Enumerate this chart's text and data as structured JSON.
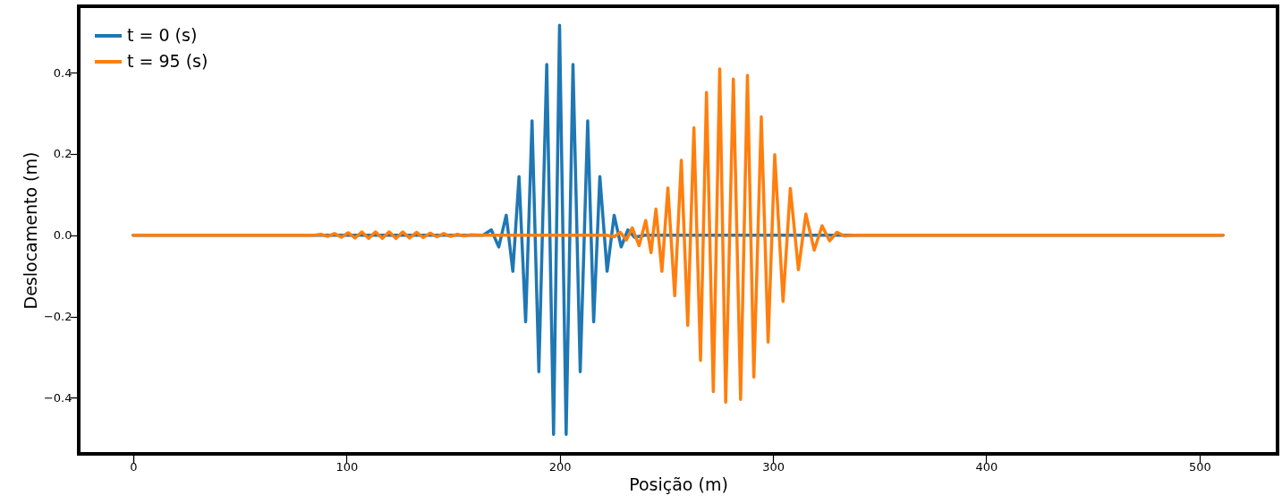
{
  "chart_data": {
    "type": "line",
    "xlabel": "Posição (m)",
    "ylabel": "Deslocamento (m)",
    "xlim": [
      -25.55,
      536.55
    ],
    "ylim": [
      -0.538,
      0.563
    ],
    "xticks": [
      0,
      100,
      200,
      300,
      400,
      500
    ],
    "yticks": [
      {
        "value": -0.4,
        "label": "−0.4"
      },
      {
        "value": -0.2,
        "label": "−0.2"
      },
      {
        "value": 0,
        "label": "0.0"
      },
      0.2,
      0.4
    ],
    "grid": false,
    "legend": "top left",
    "line_style": "solid",
    "marker": "none",
    "series": [
      {
        "name": "t = 0 (s)",
        "color": "#1f77b4",
        "x": [
          0,
          164,
          167.9,
          171.4,
          174.9,
          178,
          180.9,
          184,
          187,
          190.2,
          193.9,
          197.1,
          199.9,
          203,
          206.2,
          209.6,
          213.1,
          215.9,
          218.8,
          222.2,
          225.5,
          228.8,
          231.9,
          235,
          240,
          511
        ],
        "values": [
          0,
          0,
          0.013,
          -0.029,
          0.049,
          -0.089,
          0.144,
          -0.213,
          0.281,
          -0.336,
          0.42,
          -0.49,
          0.516,
          -0.49,
          0.42,
          -0.336,
          0.281,
          -0.213,
          0.144,
          -0.089,
          0.049,
          -0.029,
          0.013,
          -0.005,
          0,
          0
        ]
      },
      {
        "name": "t = 95 (s)",
        "color": "#ff7f0e",
        "x": [
          0,
          85,
          88,
          91.2,
          94.4,
          97.6,
          100.8,
          104,
          107.2,
          110.4,
          113.6,
          116.8,
          120,
          123.2,
          126.4,
          129.6,
          132.8,
          136,
          139.2,
          142.4,
          145.6,
          148.8,
          152,
          155.2,
          158.4,
          165,
          222,
          225.5,
          228.4,
          231.2,
          234.0,
          237.2,
          240.3,
          242.8,
          245.1,
          247.9,
          250.7,
          253.9,
          257.0,
          260.0,
          262.9,
          266.0,
          268.8,
          272.0,
          275.0,
          277.8,
          281.4,
          284.8,
          288.0,
          291.0,
          294.5,
          297.7,
          300.8,
          304.7,
          308.1,
          311.9,
          315.4,
          319.3,
          323.0,
          326.5,
          330.0,
          333.5,
          338,
          511
        ],
        "values": [
          0,
          0,
          0.002,
          -0.003,
          0.004,
          -0.005,
          0.006,
          -0.007,
          0.008,
          -0.008,
          0.008,
          -0.008,
          0.008,
          -0.008,
          0.008,
          -0.007,
          0.007,
          -0.006,
          0.005,
          -0.004,
          0.004,
          -0.003,
          0.002,
          -0.002,
          0.001,
          0,
          0,
          -0.004,
          0.007,
          -0.012,
          0.018,
          -0.026,
          0.036,
          -0.043,
          0.064,
          -0.089,
          0.116,
          -0.149,
          0.184,
          -0.222,
          0.264,
          -0.308,
          0.351,
          -0.385,
          0.409,
          -0.411,
          0.384,
          -0.404,
          0.393,
          -0.349,
          0.291,
          -0.263,
          0.198,
          -0.163,
          0.115,
          -0.085,
          0.052,
          -0.037,
          0.023,
          -0.014,
          0.007,
          -0.002,
          0,
          0
        ]
      }
    ]
  }
}
